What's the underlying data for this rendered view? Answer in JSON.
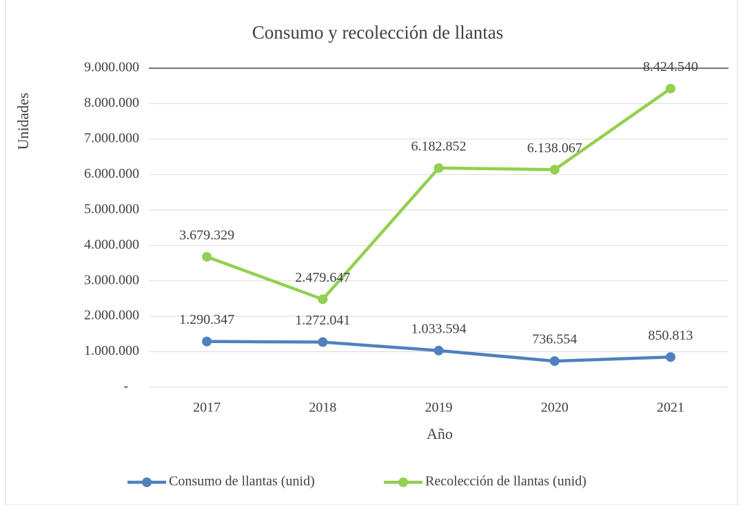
{
  "chart_data": {
    "type": "line",
    "title": "Consumo y recolección de llantas",
    "x_label": "Año",
    "y_label": "Unidades",
    "categories": [
      "2017",
      "2018",
      "2019",
      "2020",
      "2021"
    ],
    "series": [
      {
        "name": "Consumo de llantas (unid)",
        "color": "#4f81bd",
        "values": [
          1290347,
          1272041,
          1033594,
          736554,
          850813
        ],
        "value_labels": [
          "1.290.347",
          "1.272.041",
          "1.033.594",
          "736.554",
          "850.813"
        ]
      },
      {
        "name": "Recolección de llantas (unid)",
        "color": "#92d050",
        "values": [
          3679329,
          2479647,
          6182852,
          6138067,
          8424540
        ],
        "value_labels": [
          "3.679.329",
          "2.479.647",
          "6.182.852",
          "6.138.067",
          "8.424.540"
        ]
      }
    ],
    "ylim": [
      0,
      9000000
    ],
    "yticks": [
      {
        "value": 0,
        "label": "-"
      },
      {
        "value": 1000000,
        "label": "1.000.000"
      },
      {
        "value": 2000000,
        "label": "2.000.000"
      },
      {
        "value": 3000000,
        "label": "3.000.000"
      },
      {
        "value": 4000000,
        "label": "4.000.000"
      },
      {
        "value": 5000000,
        "label": "5.000.000"
      },
      {
        "value": 6000000,
        "label": "6.000.000"
      },
      {
        "value": 7000000,
        "label": "7.000.000"
      },
      {
        "value": 8000000,
        "label": "8.000.000"
      },
      {
        "value": 9000000,
        "label": "9.000.000"
      }
    ],
    "grid": true,
    "legend": "bottom"
  }
}
